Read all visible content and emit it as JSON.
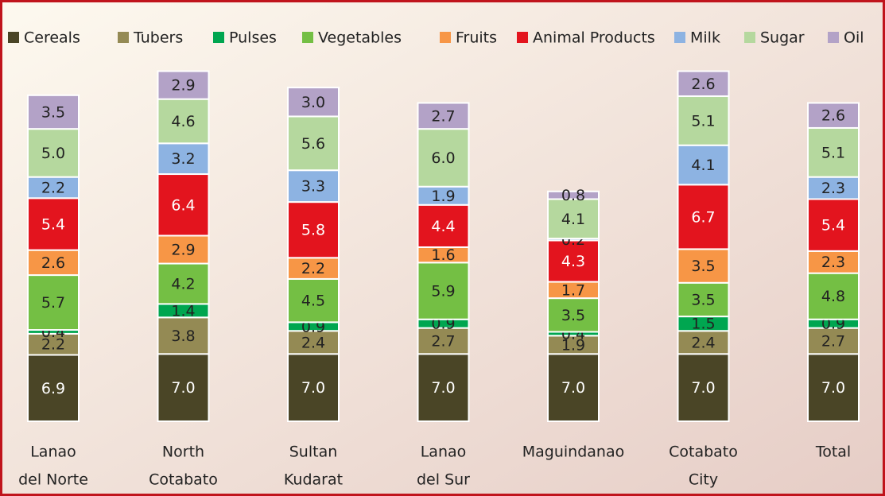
{
  "chart_data": {
    "type": "stacked_bar",
    "categories": [
      [
        "Lanao",
        "del Norte"
      ],
      [
        "North",
        "Cotabato"
      ],
      [
        "Sultan",
        "Kudarat"
      ],
      [
        "Lanao",
        "del Sur"
      ],
      [
        "Maguindanao"
      ],
      [
        "Cotabato",
        "City"
      ],
      [
        "Total"
      ]
    ],
    "series": [
      {
        "name": "Cereals",
        "color": "#4a4526",
        "label_color": "#ffffff",
        "values": [
          6.9,
          7.0,
          7.0,
          7.0,
          7.0,
          7.0,
          7.0
        ],
        "value_labels": [
          "6.9",
          "7.0",
          "7.0",
          "7.0",
          "7.0",
          "7.0",
          "7.0"
        ]
      },
      {
        "name": "Tubers",
        "color": "#948a54",
        "label_color": "#222222",
        "values": [
          2.2,
          3.8,
          2.4,
          2.7,
          1.9,
          2.4,
          2.7
        ],
        "value_labels": [
          "2.2",
          "3.8",
          "2.4",
          "2.7",
          "1.9",
          "2.4",
          "2.7"
        ]
      },
      {
        "name": "Pulses",
        "color": "#00a650",
        "label_color": "#222222",
        "values": [
          0.4,
          1.4,
          0.9,
          0.9,
          0.4,
          1.5,
          0.9
        ],
        "value_labels": [
          "0.4",
          "1.4",
          "0.9",
          "0.9",
          "0.4",
          "1.5",
          "0.9"
        ]
      },
      {
        "name": "Vegetables",
        "color": "#74bf44",
        "label_color": "#222222",
        "values": [
          5.7,
          4.2,
          4.5,
          5.9,
          3.5,
          3.5,
          4.8
        ],
        "value_labels": [
          "5.7",
          "4.2",
          "4.5",
          "5.9",
          "3.5",
          "3.5",
          "4.8"
        ]
      },
      {
        "name": "Fruits",
        "color": "#f79646",
        "label_color": "#222222",
        "values": [
          2.6,
          2.9,
          2.2,
          1.6,
          1.7,
          3.5,
          2.3
        ],
        "value_labels": [
          "2.6",
          "2.9",
          "2.2",
          "1.6",
          "1.7",
          "3.5",
          "2.3"
        ]
      },
      {
        "name": "Animal Products",
        "color": "#e3141e",
        "label_color": "#ffffff",
        "values": [
          5.4,
          6.4,
          5.8,
          4.4,
          4.3,
          6.7,
          5.4
        ],
        "value_labels": [
          "5.4",
          "6.4",
          "5.8",
          "4.4",
          "4.3",
          "6.7",
          "5.4"
        ]
      },
      {
        "name": "Milk",
        "color": "#8db3e2",
        "label_color": "#222222",
        "values": [
          2.2,
          3.2,
          3.3,
          1.9,
          0.2,
          4.1,
          2.3
        ],
        "value_labels": [
          "2.2",
          "3.2",
          "3.3",
          "1.9",
          "0.2",
          "4.1",
          "2.3"
        ]
      },
      {
        "name": "Sugar",
        "color": "#b5d89e",
        "label_color": "#222222",
        "values": [
          5.0,
          4.6,
          5.6,
          6.0,
          4.1,
          5.1,
          5.1
        ],
        "value_labels": [
          "5.0",
          "4.6",
          "5.6",
          "6.0",
          "4.1",
          "5.1",
          "5.1"
        ]
      },
      {
        "name": "Oil",
        "color": "#b3a2c7",
        "label_color": "#222222",
        "values": [
          3.5,
          2.9,
          3.0,
          2.7,
          0.8,
          2.6,
          2.6
        ],
        "value_labels": [
          "3.5",
          "2.9",
          "3.0",
          "2.7",
          "0.8",
          "2.6",
          "2.6"
        ]
      }
    ],
    "legend": "top"
  }
}
